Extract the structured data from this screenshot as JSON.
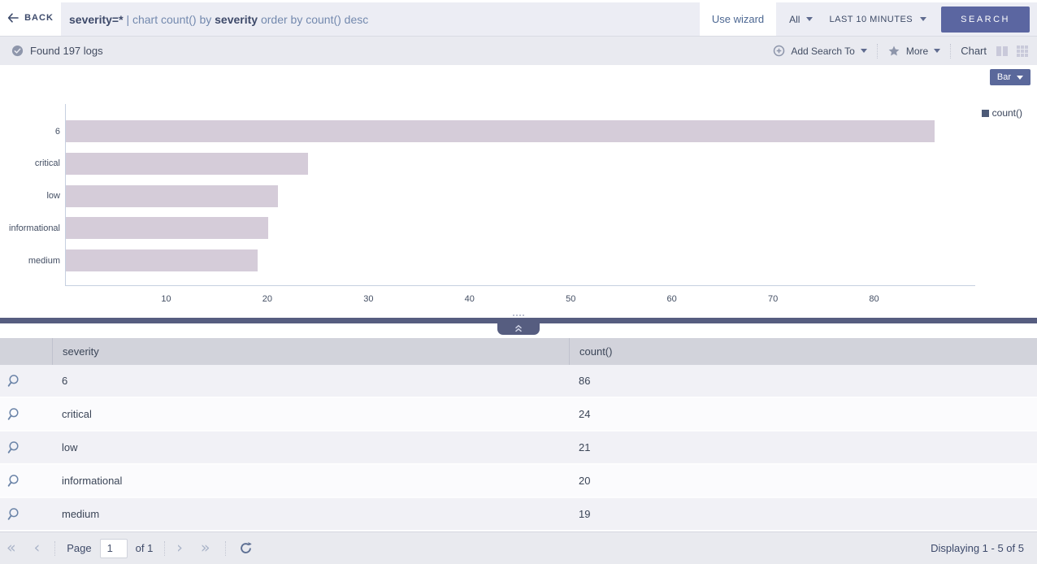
{
  "topbar": {
    "back": "BACK",
    "query_parts": {
      "field": "severity=*",
      "mid": " | chart count() by ",
      "group": "severity",
      "tail": " order by count() desc"
    },
    "use_wizard": "Use wizard",
    "log_scope": "All",
    "time_range": "LAST 10 MINUTES",
    "search": "SEARCH"
  },
  "statusbar": {
    "found": "Found 197 logs",
    "add_search_to": "Add Search To",
    "more": "More",
    "chart": "Chart"
  },
  "chart": {
    "type_selector": "Bar",
    "legend_label": "count()"
  },
  "chart_data": {
    "type": "bar",
    "orientation": "horizontal",
    "title": "",
    "categories": [
      "6",
      "critical",
      "low",
      "informational",
      "medium"
    ],
    "series": [
      {
        "name": "count()",
        "values": [
          86,
          24,
          21,
          20,
          19
        ]
      }
    ],
    "xlim": [
      0,
      90
    ],
    "xticks": [
      10,
      20,
      30,
      40,
      50,
      60,
      70,
      80
    ],
    "grid": false,
    "legend_position": "top-right",
    "bar_color": "#d5ccd9"
  },
  "table": {
    "columns": [
      "severity",
      "count()"
    ],
    "rows": [
      [
        "6",
        "86"
      ],
      [
        "critical",
        "24"
      ],
      [
        "low",
        "21"
      ],
      [
        "informational",
        "20"
      ],
      [
        "medium",
        "19"
      ]
    ]
  },
  "footer": {
    "page_label": "Page",
    "page_value": "1",
    "of_label": "of 1",
    "displaying": "Displaying 1 - 5 of 5"
  },
  "colors": {
    "accent": "#5b66a1",
    "bar_fill": "#d5ccd9",
    "divider": "#565d80",
    "header_bg": "#d2d3db"
  }
}
